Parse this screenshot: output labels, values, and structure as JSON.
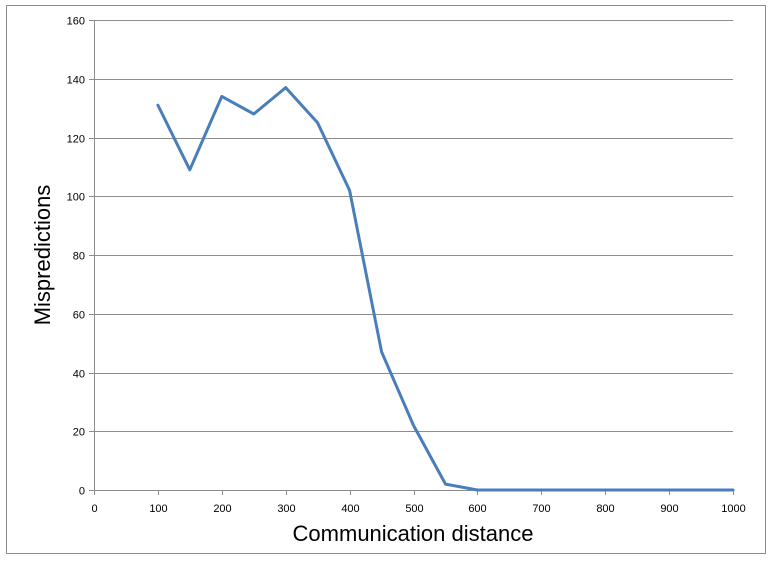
{
  "chart_data": {
    "type": "line",
    "xlabel": "Communication distance",
    "ylabel": "Mispredictions",
    "xlim": [
      0,
      1000
    ],
    "ylim": [
      0,
      160
    ],
    "x_ticks": [
      0,
      100,
      200,
      300,
      400,
      500,
      600,
      700,
      800,
      900,
      1000
    ],
    "y_ticks": [
      0,
      20,
      40,
      60,
      80,
      100,
      120,
      140,
      160
    ],
    "grid": "horizontal",
    "legend": "none",
    "series": [
      {
        "color": "#4a7ebb",
        "x": [
          100,
          150,
          200,
          250,
          300,
          350,
          400,
          450,
          500,
          550,
          600,
          650,
          700,
          750,
          800,
          850,
          900,
          950,
          1000
        ],
        "y": [
          131,
          109,
          134,
          128,
          137,
          125,
          102,
          47,
          22,
          2,
          0,
          0,
          0,
          0,
          0,
          0,
          0,
          0,
          0
        ]
      }
    ]
  }
}
